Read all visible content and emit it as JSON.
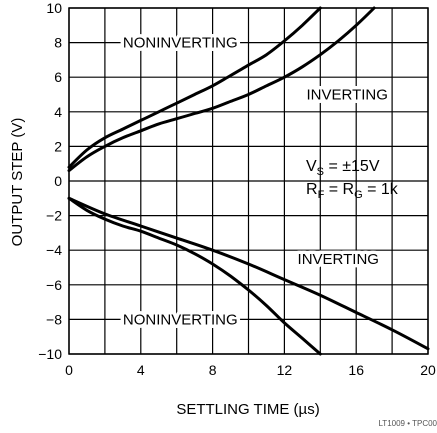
{
  "chart_data": {
    "type": "line",
    "title": "",
    "xlabel": "SETTLING TIME (µs)",
    "ylabel": "OUTPUT STEP (V)",
    "xlim": [
      0,
      20
    ],
    "ylim": [
      -10,
      10
    ],
    "x_ticks": [
      "0",
      "4",
      "8",
      "12",
      "16",
      "20"
    ],
    "y_ticks": [
      "10",
      "8",
      "6",
      "4",
      "2",
      "0",
      "−2",
      "−4",
      "−6",
      "−8",
      "−10"
    ],
    "grid": true,
    "conditions": {
      "line1": {
        "lhs": "V",
        "lhs_sub": "S",
        "rhs": " = ±15V"
      },
      "line2": {
        "a": "R",
        "a_sub": "F",
        "mid": " = R",
        "b_sub": "G",
        "rhs": " = 1k"
      }
    },
    "footer_id": "LT1009 • TPC00",
    "series": [
      {
        "name": "NONINVERTING",
        "x": [
          0,
          1,
          2,
          3,
          4,
          5,
          6,
          7,
          8,
          9,
          10,
          11,
          12,
          13,
          14
        ],
        "y": [
          0.8,
          1.8,
          2.5,
          3.0,
          3.5,
          4.0,
          4.5,
          5.0,
          5.5,
          6.1,
          6.7,
          7.3,
          8.1,
          9.0,
          10.0
        ]
      },
      {
        "name": "INVERTING",
        "x": [
          0,
          1,
          2,
          3,
          4,
          5,
          6,
          7,
          8,
          9,
          10,
          11,
          12,
          13,
          14,
          15,
          16,
          17
        ],
        "y": [
          0.6,
          1.4,
          2.0,
          2.5,
          2.9,
          3.3,
          3.6,
          3.9,
          4.2,
          4.6,
          5.0,
          5.5,
          6.0,
          6.6,
          7.3,
          8.1,
          9.0,
          10.0
        ]
      },
      {
        "name": "INVERTING",
        "x": [
          0,
          2,
          4,
          6,
          8,
          10,
          12,
          14,
          16,
          18,
          20
        ],
        "y": [
          -1.0,
          -1.9,
          -2.6,
          -3.3,
          -4.0,
          -4.8,
          -5.7,
          -6.6,
          -7.6,
          -8.6,
          -9.7
        ]
      },
      {
        "name": "NONINVERTING",
        "x": [
          0,
          1,
          2,
          3,
          4,
          5,
          6,
          7,
          8,
          9,
          10,
          11,
          12,
          13,
          14
        ],
        "y": [
          -1.0,
          -1.7,
          -2.2,
          -2.6,
          -2.9,
          -3.3,
          -3.7,
          -4.2,
          -4.8,
          -5.5,
          -6.3,
          -7.2,
          -8.2,
          -9.1,
          -10.0
        ]
      }
    ],
    "curve_labels": [
      {
        "text": "NONINVERTING",
        "x": 6.2,
        "y": 8.0,
        "series_index": 0
      },
      {
        "text": "INVERTING",
        "x": 15.5,
        "y": 5.0,
        "series_index": 1
      },
      {
        "text": "INVERTING",
        "x": 15.0,
        "y": -4.5,
        "series_index": 2
      },
      {
        "text": "NONINVERTING",
        "x": 6.2,
        "y": -8.0,
        "series_index": 3
      }
    ]
  }
}
